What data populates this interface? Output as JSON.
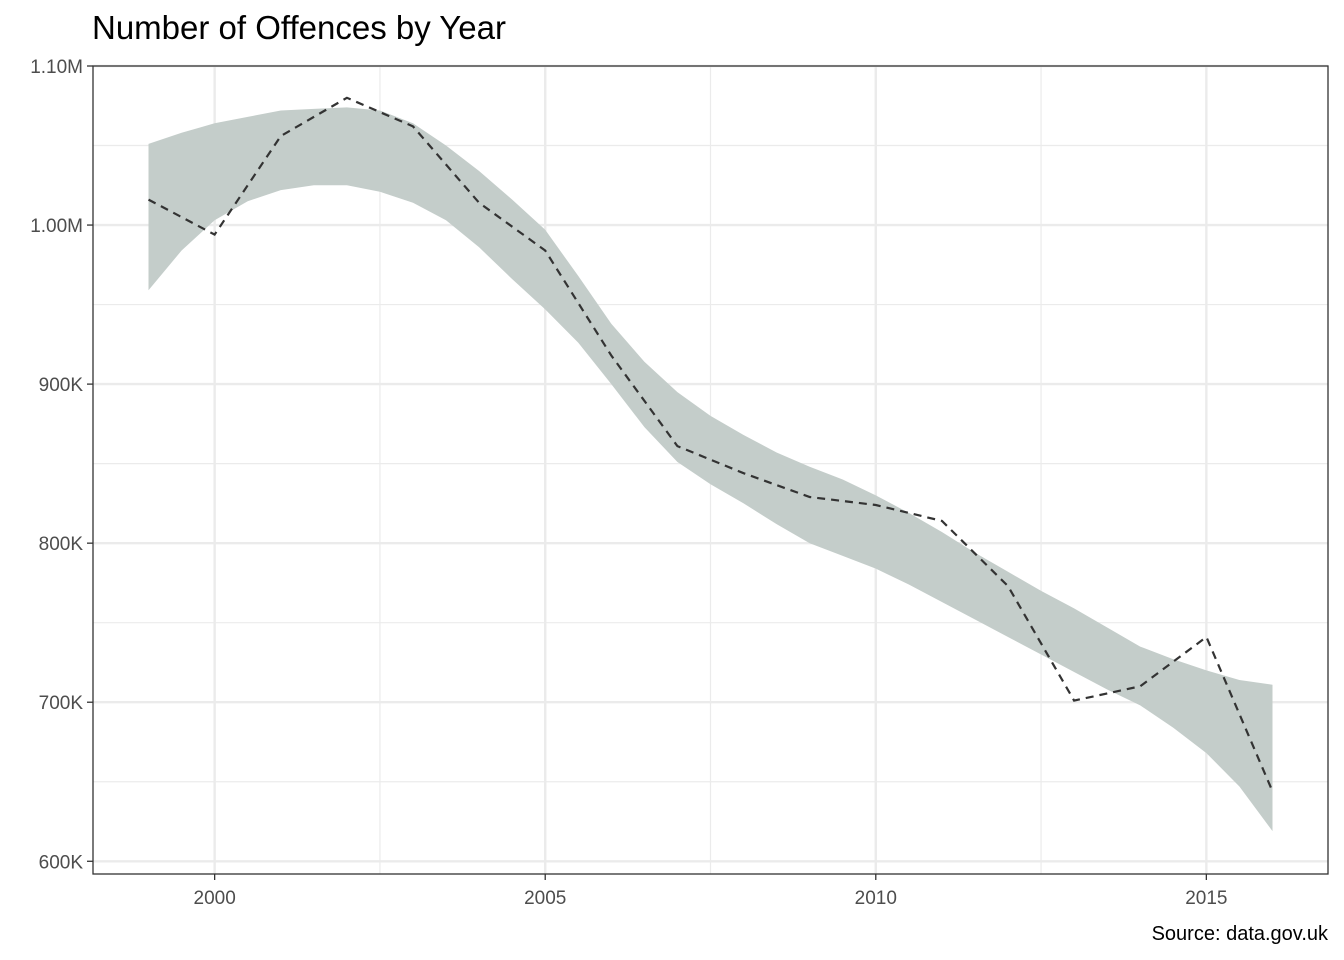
{
  "chart_data": {
    "type": "line",
    "title": "Number of Offences by Year",
    "caption": "Source: data.gov.uk",
    "xlabel": "",
    "ylabel": "",
    "xlim": [
      1998.16,
      2016.84
    ],
    "ylim": [
      592000,
      1100000
    ],
    "x_ticks": [
      2000,
      2005,
      2010,
      2015
    ],
    "x_tick_labels": [
      "2000",
      "2005",
      "2010",
      "2015"
    ],
    "y_ticks": [
      600000,
      700000,
      800000,
      900000,
      1000000,
      1100000
    ],
    "y_tick_labels": [
      "600K",
      "700K",
      "800K",
      "900K",
      "1.00M",
      "1.10M"
    ],
    "grid": true,
    "series": [
      {
        "style": "dashed",
        "color": "#333333",
        "x": [
          1999,
          2000,
          2001,
          2002,
          2003,
          2004,
          2005,
          2006,
          2007,
          2008,
          2009,
          2010,
          2011,
          2012,
          2013,
          2014,
          2015,
          2016
        ],
        "values": [
          1016000,
          994000,
          1056000,
          1080000,
          1062000,
          1014000,
          984000,
          918000,
          861000,
          844000,
          829000,
          824000,
          814000,
          773000,
          701000,
          710000,
          741000,
          644000
        ]
      }
    ],
    "band": {
      "color": "#c4cdca",
      "x": [
        1999,
        1999.5,
        2000,
        2000.5,
        2001,
        2001.5,
        2002,
        2002.5,
        2003,
        2003.5,
        2004,
        2004.5,
        2005,
        2005.5,
        2006,
        2006.5,
        2007,
        2007.5,
        2008,
        2008.5,
        2009,
        2009.5,
        2010,
        2010.5,
        2011,
        2011.5,
        2012,
        2012.5,
        2013,
        2013.5,
        2014,
        2014.5,
        2015,
        2015.5,
        2016
      ],
      "lower": [
        959000,
        984000,
        1003000,
        1015000,
        1022000,
        1025000,
        1025000,
        1021000,
        1014000,
        1003000,
        986000,
        966000,
        947000,
        926000,
        900000,
        873000,
        851000,
        837000,
        825000,
        812000,
        800000,
        792000,
        784000,
        774000,
        763000,
        752000,
        741000,
        730000,
        719000,
        708000,
        698000,
        684000,
        668000,
        647000,
        619000
      ],
      "upper": [
        1051000,
        1058000,
        1064000,
        1068000,
        1072000,
        1073000,
        1074000,
        1072000,
        1064000,
        1050000,
        1034000,
        1016000,
        997000,
        968000,
        938000,
        914000,
        895000,
        880000,
        868000,
        857000,
        848000,
        840000,
        830000,
        819000,
        807000,
        794000,
        782000,
        770000,
        759000,
        747000,
        735000,
        727000,
        720000,
        714000,
        711000
      ]
    },
    "colors": {
      "background": "#ffffff",
      "grid": "#ebebeb",
      "border": "#333333",
      "tick_text": "#4d4d4d"
    }
  }
}
